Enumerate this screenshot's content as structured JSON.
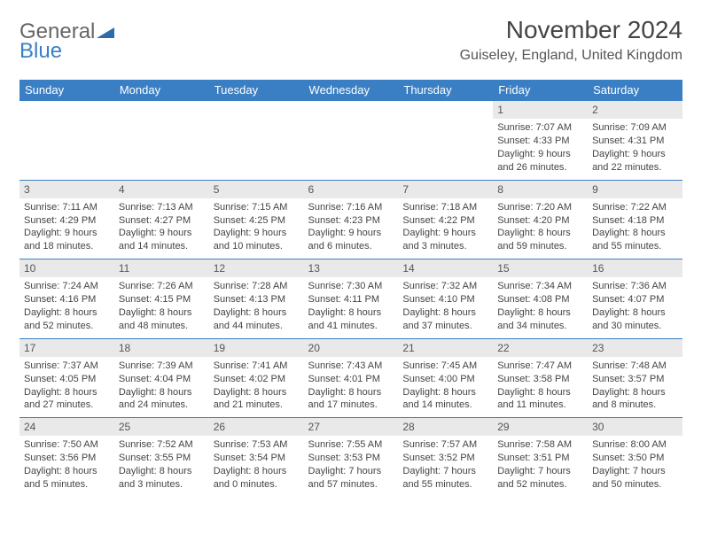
{
  "logo": {
    "text1": "General",
    "text2": "Blue"
  },
  "title": "November 2024",
  "location": "Guiseley, England, United Kingdom",
  "colors": {
    "header_bg": "#3a7fc4",
    "daynum_bg": "#e9e9e9",
    "border": "#3a7fc4",
    "text": "#444444"
  },
  "days_of_week": [
    "Sunday",
    "Monday",
    "Tuesday",
    "Wednesday",
    "Thursday",
    "Friday",
    "Saturday"
  ],
  "weeks": [
    [
      null,
      null,
      null,
      null,
      null,
      {
        "n": "1",
        "sunrise": "Sunrise: 7:07 AM",
        "sunset": "Sunset: 4:33 PM",
        "day1": "Daylight: 9 hours",
        "day2": "and 26 minutes."
      },
      {
        "n": "2",
        "sunrise": "Sunrise: 7:09 AM",
        "sunset": "Sunset: 4:31 PM",
        "day1": "Daylight: 9 hours",
        "day2": "and 22 minutes."
      }
    ],
    [
      {
        "n": "3",
        "sunrise": "Sunrise: 7:11 AM",
        "sunset": "Sunset: 4:29 PM",
        "day1": "Daylight: 9 hours",
        "day2": "and 18 minutes."
      },
      {
        "n": "4",
        "sunrise": "Sunrise: 7:13 AM",
        "sunset": "Sunset: 4:27 PM",
        "day1": "Daylight: 9 hours",
        "day2": "and 14 minutes."
      },
      {
        "n": "5",
        "sunrise": "Sunrise: 7:15 AM",
        "sunset": "Sunset: 4:25 PM",
        "day1": "Daylight: 9 hours",
        "day2": "and 10 minutes."
      },
      {
        "n": "6",
        "sunrise": "Sunrise: 7:16 AM",
        "sunset": "Sunset: 4:23 PM",
        "day1": "Daylight: 9 hours",
        "day2": "and 6 minutes."
      },
      {
        "n": "7",
        "sunrise": "Sunrise: 7:18 AM",
        "sunset": "Sunset: 4:22 PM",
        "day1": "Daylight: 9 hours",
        "day2": "and 3 minutes."
      },
      {
        "n": "8",
        "sunrise": "Sunrise: 7:20 AM",
        "sunset": "Sunset: 4:20 PM",
        "day1": "Daylight: 8 hours",
        "day2": "and 59 minutes."
      },
      {
        "n": "9",
        "sunrise": "Sunrise: 7:22 AM",
        "sunset": "Sunset: 4:18 PM",
        "day1": "Daylight: 8 hours",
        "day2": "and 55 minutes."
      }
    ],
    [
      {
        "n": "10",
        "sunrise": "Sunrise: 7:24 AM",
        "sunset": "Sunset: 4:16 PM",
        "day1": "Daylight: 8 hours",
        "day2": "and 52 minutes."
      },
      {
        "n": "11",
        "sunrise": "Sunrise: 7:26 AM",
        "sunset": "Sunset: 4:15 PM",
        "day1": "Daylight: 8 hours",
        "day2": "and 48 minutes."
      },
      {
        "n": "12",
        "sunrise": "Sunrise: 7:28 AM",
        "sunset": "Sunset: 4:13 PM",
        "day1": "Daylight: 8 hours",
        "day2": "and 44 minutes."
      },
      {
        "n": "13",
        "sunrise": "Sunrise: 7:30 AM",
        "sunset": "Sunset: 4:11 PM",
        "day1": "Daylight: 8 hours",
        "day2": "and 41 minutes."
      },
      {
        "n": "14",
        "sunrise": "Sunrise: 7:32 AM",
        "sunset": "Sunset: 4:10 PM",
        "day1": "Daylight: 8 hours",
        "day2": "and 37 minutes."
      },
      {
        "n": "15",
        "sunrise": "Sunrise: 7:34 AM",
        "sunset": "Sunset: 4:08 PM",
        "day1": "Daylight: 8 hours",
        "day2": "and 34 minutes."
      },
      {
        "n": "16",
        "sunrise": "Sunrise: 7:36 AM",
        "sunset": "Sunset: 4:07 PM",
        "day1": "Daylight: 8 hours",
        "day2": "and 30 minutes."
      }
    ],
    [
      {
        "n": "17",
        "sunrise": "Sunrise: 7:37 AM",
        "sunset": "Sunset: 4:05 PM",
        "day1": "Daylight: 8 hours",
        "day2": "and 27 minutes."
      },
      {
        "n": "18",
        "sunrise": "Sunrise: 7:39 AM",
        "sunset": "Sunset: 4:04 PM",
        "day1": "Daylight: 8 hours",
        "day2": "and 24 minutes."
      },
      {
        "n": "19",
        "sunrise": "Sunrise: 7:41 AM",
        "sunset": "Sunset: 4:02 PM",
        "day1": "Daylight: 8 hours",
        "day2": "and 21 minutes."
      },
      {
        "n": "20",
        "sunrise": "Sunrise: 7:43 AM",
        "sunset": "Sunset: 4:01 PM",
        "day1": "Daylight: 8 hours",
        "day2": "and 17 minutes."
      },
      {
        "n": "21",
        "sunrise": "Sunrise: 7:45 AM",
        "sunset": "Sunset: 4:00 PM",
        "day1": "Daylight: 8 hours",
        "day2": "and 14 minutes."
      },
      {
        "n": "22",
        "sunrise": "Sunrise: 7:47 AM",
        "sunset": "Sunset: 3:58 PM",
        "day1": "Daylight: 8 hours",
        "day2": "and 11 minutes."
      },
      {
        "n": "23",
        "sunrise": "Sunrise: 7:48 AM",
        "sunset": "Sunset: 3:57 PM",
        "day1": "Daylight: 8 hours",
        "day2": "and 8 minutes."
      }
    ],
    [
      {
        "n": "24",
        "sunrise": "Sunrise: 7:50 AM",
        "sunset": "Sunset: 3:56 PM",
        "day1": "Daylight: 8 hours",
        "day2": "and 5 minutes."
      },
      {
        "n": "25",
        "sunrise": "Sunrise: 7:52 AM",
        "sunset": "Sunset: 3:55 PM",
        "day1": "Daylight: 8 hours",
        "day2": "and 3 minutes."
      },
      {
        "n": "26",
        "sunrise": "Sunrise: 7:53 AM",
        "sunset": "Sunset: 3:54 PM",
        "day1": "Daylight: 8 hours",
        "day2": "and 0 minutes."
      },
      {
        "n": "27",
        "sunrise": "Sunrise: 7:55 AM",
        "sunset": "Sunset: 3:53 PM",
        "day1": "Daylight: 7 hours",
        "day2": "and 57 minutes."
      },
      {
        "n": "28",
        "sunrise": "Sunrise: 7:57 AM",
        "sunset": "Sunset: 3:52 PM",
        "day1": "Daylight: 7 hours",
        "day2": "and 55 minutes."
      },
      {
        "n": "29",
        "sunrise": "Sunrise: 7:58 AM",
        "sunset": "Sunset: 3:51 PM",
        "day1": "Daylight: 7 hours",
        "day2": "and 52 minutes."
      },
      {
        "n": "30",
        "sunrise": "Sunrise: 8:00 AM",
        "sunset": "Sunset: 3:50 PM",
        "day1": "Daylight: 7 hours",
        "day2": "and 50 minutes."
      }
    ]
  ]
}
